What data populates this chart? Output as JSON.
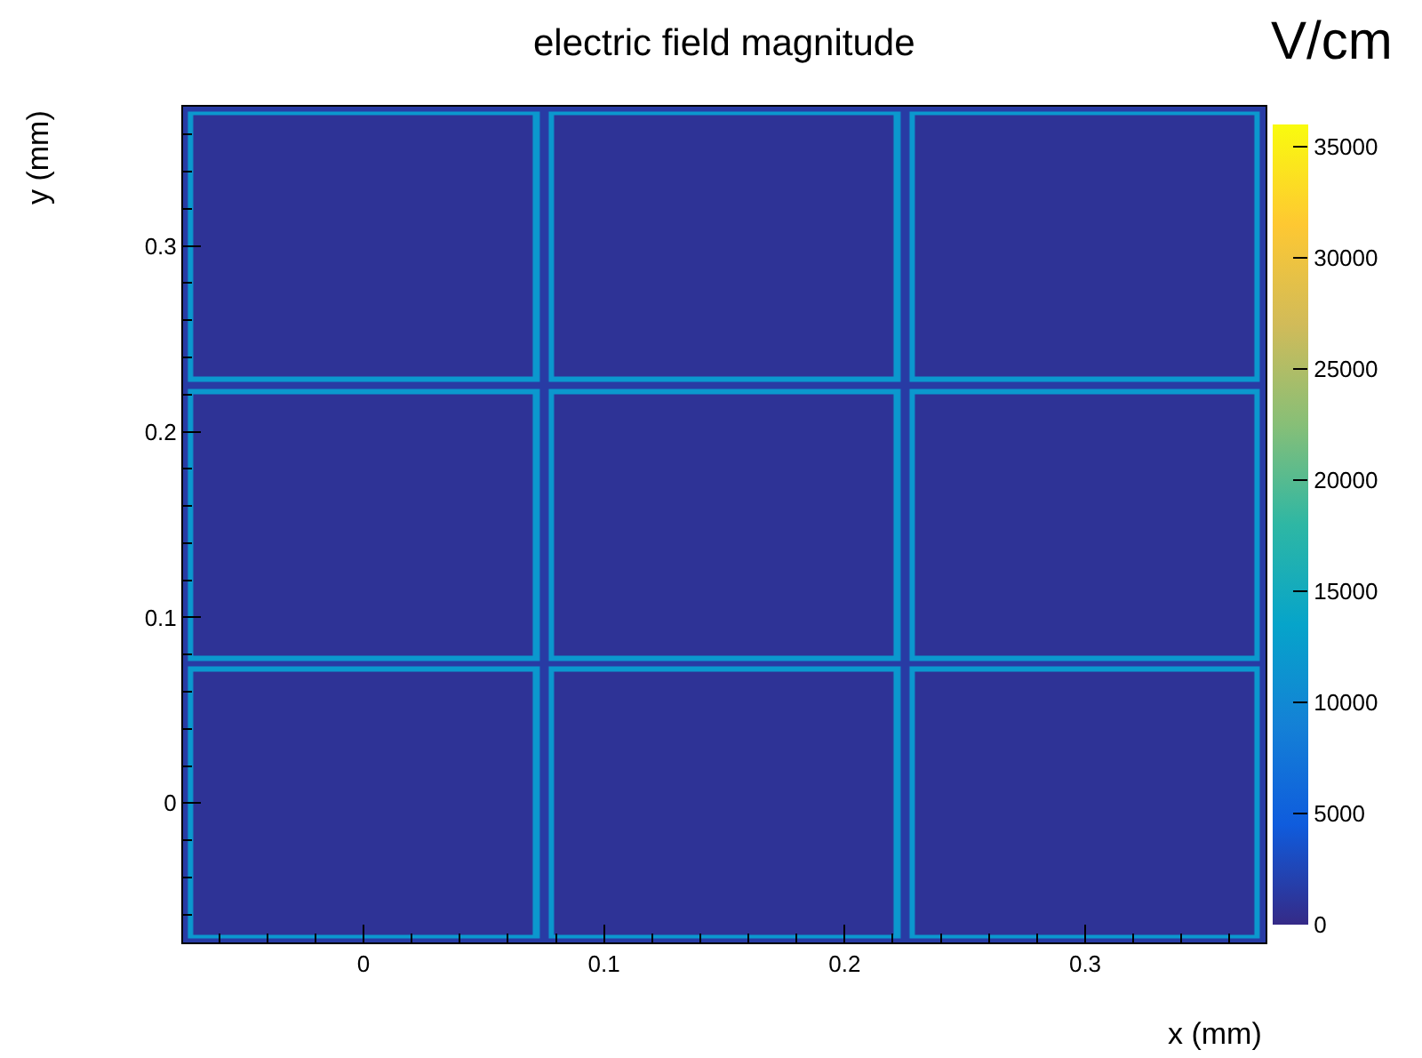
{
  "chart_data": {
    "type": "heatmap",
    "title": "electric field magnitude",
    "xlabel": "x (mm)",
    "ylabel": "y (mm)",
    "clabel": "V/cm",
    "x": [
      -0.074,
      -0.0715,
      -0.0695,
      0.0695,
      0.0715,
      0.075,
      0.0785,
      0.0805,
      0.2195,
      0.2215,
      0.225,
      0.2285,
      0.2305,
      0.3695,
      0.3715,
      0.374
    ],
    "y": [
      0.374,
      0.3715,
      0.3695,
      0.2305,
      0.2285,
      0.225,
      0.2215,
      0.2195,
      0.0805,
      0.0785,
      0.075,
      0.0715,
      0.0695,
      -0.0695,
      -0.0715,
      -0.074
    ],
    "cells": [
      [
        1500,
        1500,
        1500,
        1500,
        1500,
        1500,
        1500,
        1500,
        1500,
        1500,
        1500,
        1500,
        1500,
        1500,
        1500,
        1500
      ],
      [
        1500,
        12000,
        12000,
        12000,
        12000,
        1500,
        12000,
        12000,
        12000,
        12000,
        1500,
        12000,
        12000,
        12000,
        12000,
        1500
      ],
      [
        1500,
        12000,
        800,
        800,
        12000,
        1500,
        12000,
        800,
        800,
        12000,
        1500,
        12000,
        800,
        800,
        12000,
        1500
      ],
      [
        1500,
        12000,
        800,
        800,
        12000,
        1500,
        12000,
        800,
        800,
        12000,
        1500,
        12000,
        800,
        800,
        12000,
        1500
      ],
      [
        1500,
        12000,
        12000,
        12000,
        12000,
        1500,
        12000,
        12000,
        12000,
        12000,
        1500,
        12000,
        12000,
        12000,
        12000,
        1500
      ],
      [
        1500,
        1500,
        1500,
        1500,
        1500,
        1500,
        1500,
        1500,
        1500,
        1500,
        1500,
        1500,
        1500,
        1500,
        1500,
        1500
      ],
      [
        1500,
        12000,
        12000,
        12000,
        12000,
        1500,
        12000,
        12000,
        12000,
        12000,
        1500,
        12000,
        12000,
        12000,
        12000,
        1500
      ],
      [
        1500,
        12000,
        800,
        800,
        12000,
        1500,
        12000,
        800,
        800,
        12000,
        1500,
        12000,
        800,
        800,
        12000,
        1500
      ],
      [
        1500,
        12000,
        800,
        800,
        12000,
        1500,
        12000,
        800,
        800,
        12000,
        1500,
        12000,
        800,
        800,
        12000,
        1500
      ],
      [
        1500,
        12000,
        12000,
        12000,
        12000,
        1500,
        12000,
        12000,
        12000,
        12000,
        1500,
        12000,
        12000,
        12000,
        12000,
        1500
      ],
      [
        1500,
        1500,
        1500,
        1500,
        1500,
        1500,
        1500,
        1500,
        1500,
        1500,
        1500,
        1500,
        1500,
        1500,
        1500,
        1500
      ],
      [
        1500,
        12000,
        12000,
        12000,
        12000,
        1500,
        12000,
        12000,
        12000,
        12000,
        1500,
        12000,
        12000,
        12000,
        12000,
        1500
      ],
      [
        1500,
        12000,
        800,
        800,
        12000,
        1500,
        12000,
        800,
        800,
        12000,
        1500,
        12000,
        800,
        800,
        12000,
        1500
      ],
      [
        1500,
        12000,
        800,
        800,
        12000,
        1500,
        12000,
        800,
        800,
        12000,
        1500,
        12000,
        800,
        800,
        12000,
        1500
      ],
      [
        1500,
        12000,
        12000,
        12000,
        12000,
        1500,
        12000,
        12000,
        12000,
        12000,
        1500,
        12000,
        12000,
        12000,
        12000,
        1500
      ],
      [
        1500,
        1500,
        1500,
        1500,
        1500,
        1500,
        1500,
        1500,
        1500,
        1500,
        1500,
        1500,
        1500,
        1500,
        1500,
        1500
      ]
    ],
    "xlim": [
      -0.075,
      0.375
    ],
    "ylim": [
      -0.075,
      0.375
    ],
    "xticks": [
      0,
      0.1,
      0.2,
      0.3
    ],
    "yticks": [
      0,
      0.1,
      0.2,
      0.3
    ],
    "clim": [
      0,
      36000
    ],
    "cticks": [
      0,
      5000,
      10000,
      15000,
      20000,
      25000,
      30000,
      35000
    ]
  }
}
